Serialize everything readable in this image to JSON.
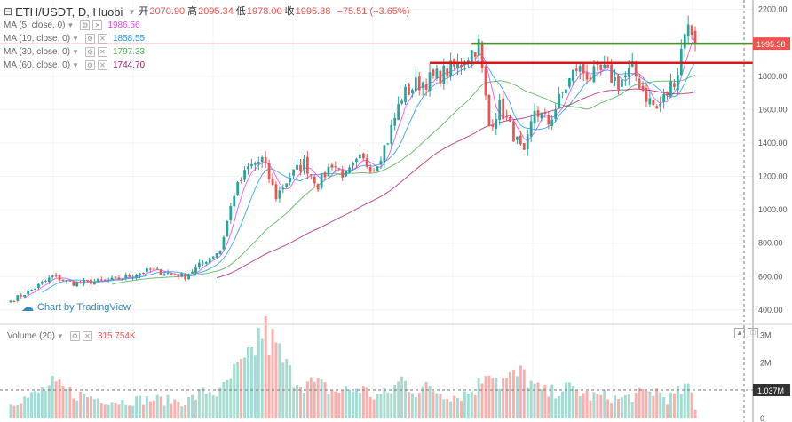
{
  "legend": {
    "symbol": "ETH/USDT, D, Huobi",
    "open_label": "开",
    "open": "2070.90",
    "high_label": "高",
    "high": "2095.34",
    "low_label": "低",
    "low": "1978.00",
    "close_label": "收",
    "close": "1995.38",
    "change": "−75.51 (−3.65%)"
  },
  "ma": [
    {
      "label": "MA (5, close, 0)",
      "value": "1986.56",
      "color": "#e040fb"
    },
    {
      "label": "MA (10, close, 0)",
      "value": "1858.55",
      "color": "#2196f3"
    },
    {
      "label": "MA (30, close, 0)",
      "value": "1797.33",
      "color": "#4caf50"
    },
    {
      "label": "MA (60, close, 0)",
      "value": "1744.70",
      "color": "#b0206e"
    }
  ],
  "volume_legend": {
    "label": "Volume (20)",
    "value": "315.754K"
  },
  "watermark": "Chart by TradingView",
  "last_price_tag": "1995.38",
  "volume_tag": "1.037M",
  "colors": {
    "up": "#26a69a",
    "down": "#ef5350",
    "up_vol": "#a6dbd2",
    "down_vol": "#f8b0ae",
    "trendline_green": "#2e9e2e",
    "trendline_red": "#d7191c"
  },
  "chart_data": {
    "type": "candlestick",
    "y_ticks": [
      "2200.00",
      "2000.00",
      "1800.00",
      "1600.00",
      "1400.00",
      "1200.00",
      "1000.00",
      "800.00",
      "600.00",
      "400.00"
    ],
    "ylim": [
      330,
      2230
    ],
    "volume_ticks": [
      "3M",
      "2M",
      "0"
    ],
    "volume_ylim": [
      0,
      3300000
    ],
    "anchors": [
      {
        "i": 0,
        "price": 455,
        "vol": 0.6
      },
      {
        "i": 6,
        "price": 520,
        "vol": 0.8
      },
      {
        "i": 12,
        "price": 600,
        "vol": 1.2
      },
      {
        "i": 18,
        "price": 560,
        "vol": 0.9
      },
      {
        "i": 30,
        "price": 580,
        "vol": 0.6
      },
      {
        "i": 40,
        "price": 640,
        "vol": 0.7
      },
      {
        "i": 50,
        "price": 600,
        "vol": 0.6
      },
      {
        "i": 56,
        "price": 700,
        "vol": 1.0
      },
      {
        "i": 60,
        "price": 760,
        "vol": 0.9
      },
      {
        "i": 64,
        "price": 1100,
        "vol": 1.6
      },
      {
        "i": 68,
        "price": 1250,
        "vol": 2.0
      },
      {
        "i": 72,
        "price": 1300,
        "vol": 3.2
      },
      {
        "i": 76,
        "price": 1080,
        "vol": 2.5
      },
      {
        "i": 80,
        "price": 1200,
        "vol": 1.6
      },
      {
        "i": 84,
        "price": 1280,
        "vol": 1.3
      },
      {
        "i": 88,
        "price": 1150,
        "vol": 1.2
      },
      {
        "i": 92,
        "price": 1280,
        "vol": 1.0
      },
      {
        "i": 96,
        "price": 1200,
        "vol": 1.0
      },
      {
        "i": 100,
        "price": 1300,
        "vol": 1.1
      },
      {
        "i": 104,
        "price": 1250,
        "vol": 0.8
      },
      {
        "i": 108,
        "price": 1420,
        "vol": 0.9
      },
      {
        "i": 112,
        "price": 1680,
        "vol": 1.4
      },
      {
        "i": 116,
        "price": 1750,
        "vol": 1.0
      },
      {
        "i": 120,
        "price": 1780,
        "vol": 1.1
      },
      {
        "i": 124,
        "price": 1820,
        "vol": 0.9
      },
      {
        "i": 128,
        "price": 1860,
        "vol": 0.8
      },
      {
        "i": 132,
        "price": 1950,
        "vol": 1.0
      },
      {
        "i": 134,
        "price": 1990,
        "vol": 1.2
      },
      {
        "i": 137,
        "price": 1500,
        "vol": 2.0
      },
      {
        "i": 140,
        "price": 1620,
        "vol": 1.3
      },
      {
        "i": 144,
        "price": 1450,
        "vol": 1.5
      },
      {
        "i": 147,
        "price": 1320,
        "vol": 1.6
      },
      {
        "i": 150,
        "price": 1600,
        "vol": 1.1
      },
      {
        "i": 154,
        "price": 1520,
        "vol": 0.9
      },
      {
        "i": 158,
        "price": 1700,
        "vol": 1.1
      },
      {
        "i": 162,
        "price": 1850,
        "vol": 1.0
      },
      {
        "i": 166,
        "price": 1800,
        "vol": 0.8
      },
      {
        "i": 170,
        "price": 1830,
        "vol": 0.8
      },
      {
        "i": 174,
        "price": 1760,
        "vol": 0.7
      },
      {
        "i": 178,
        "price": 1840,
        "vol": 0.8
      },
      {
        "i": 182,
        "price": 1680,
        "vol": 0.9
      },
      {
        "i": 185,
        "price": 1600,
        "vol": 1.0
      },
      {
        "i": 188,
        "price": 1700,
        "vol": 0.7
      },
      {
        "i": 191,
        "price": 1830,
        "vol": 0.9
      },
      {
        "i": 193,
        "price": 2090,
        "vol": 1.1
      },
      {
        "i": 195,
        "price": 2075,
        "vol": 0.9
      },
      {
        "i": 196,
        "price": 1995,
        "vol": 0.3
      }
    ],
    "ma_last": {
      "ma5": 1986.56,
      "ma10": 1858.55,
      "ma30": 1797.33,
      "ma60": 1744.7
    },
    "trendlines": [
      {
        "color": "green",
        "from": {
          "i": 132,
          "price": 1995
        },
        "to": {
          "i": 212,
          "price": 1995
        }
      },
      {
        "color": "red",
        "from": {
          "i": 120,
          "price": 1880
        },
        "to": {
          "i": 212,
          "price": 1880
        }
      }
    ]
  }
}
